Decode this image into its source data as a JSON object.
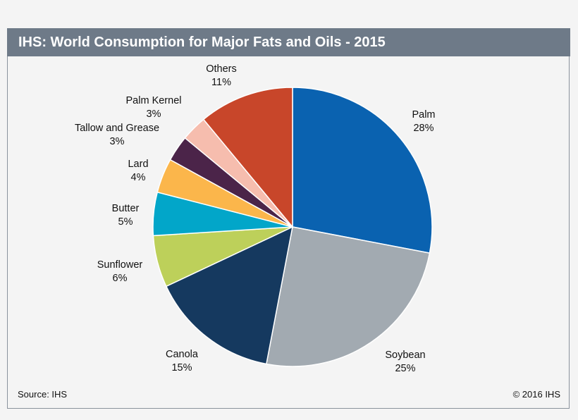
{
  "chart_data": {
    "type": "pie",
    "title": "IHS: World Consumption for Major Fats and Oils - 2015",
    "start": "top, clockwise",
    "slices": [
      {
        "label": "Palm",
        "value": 28,
        "value_label": "28%",
        "color": "#0a62b0"
      },
      {
        "label": "Soybean",
        "value": 25,
        "value_label": "25%",
        "color": "#a2aab1"
      },
      {
        "label": "Canola",
        "value": 15,
        "value_label": "15%",
        "color": "#15395f"
      },
      {
        "label": "Sunflower",
        "value": 6,
        "value_label": "6%",
        "color": "#bdd05a"
      },
      {
        "label": "Butter",
        "value": 5,
        "value_label": "5%",
        "color": "#02a6c9"
      },
      {
        "label": "Lard",
        "value": 4,
        "value_label": "4%",
        "color": "#fbb64b"
      },
      {
        "label": "Tallow and Grease",
        "value": 3,
        "value_label": "3%",
        "color": "#4b2449"
      },
      {
        "label": "Palm Kernel",
        "value": 3,
        "value_label": "3%",
        "color": "#f6bdae"
      },
      {
        "label": "Others",
        "value": 11,
        "value_label": "11%",
        "color": "#c8462a"
      }
    ]
  },
  "footer": {
    "source": "Source: IHS",
    "copyright": "© 2016 IHS"
  }
}
